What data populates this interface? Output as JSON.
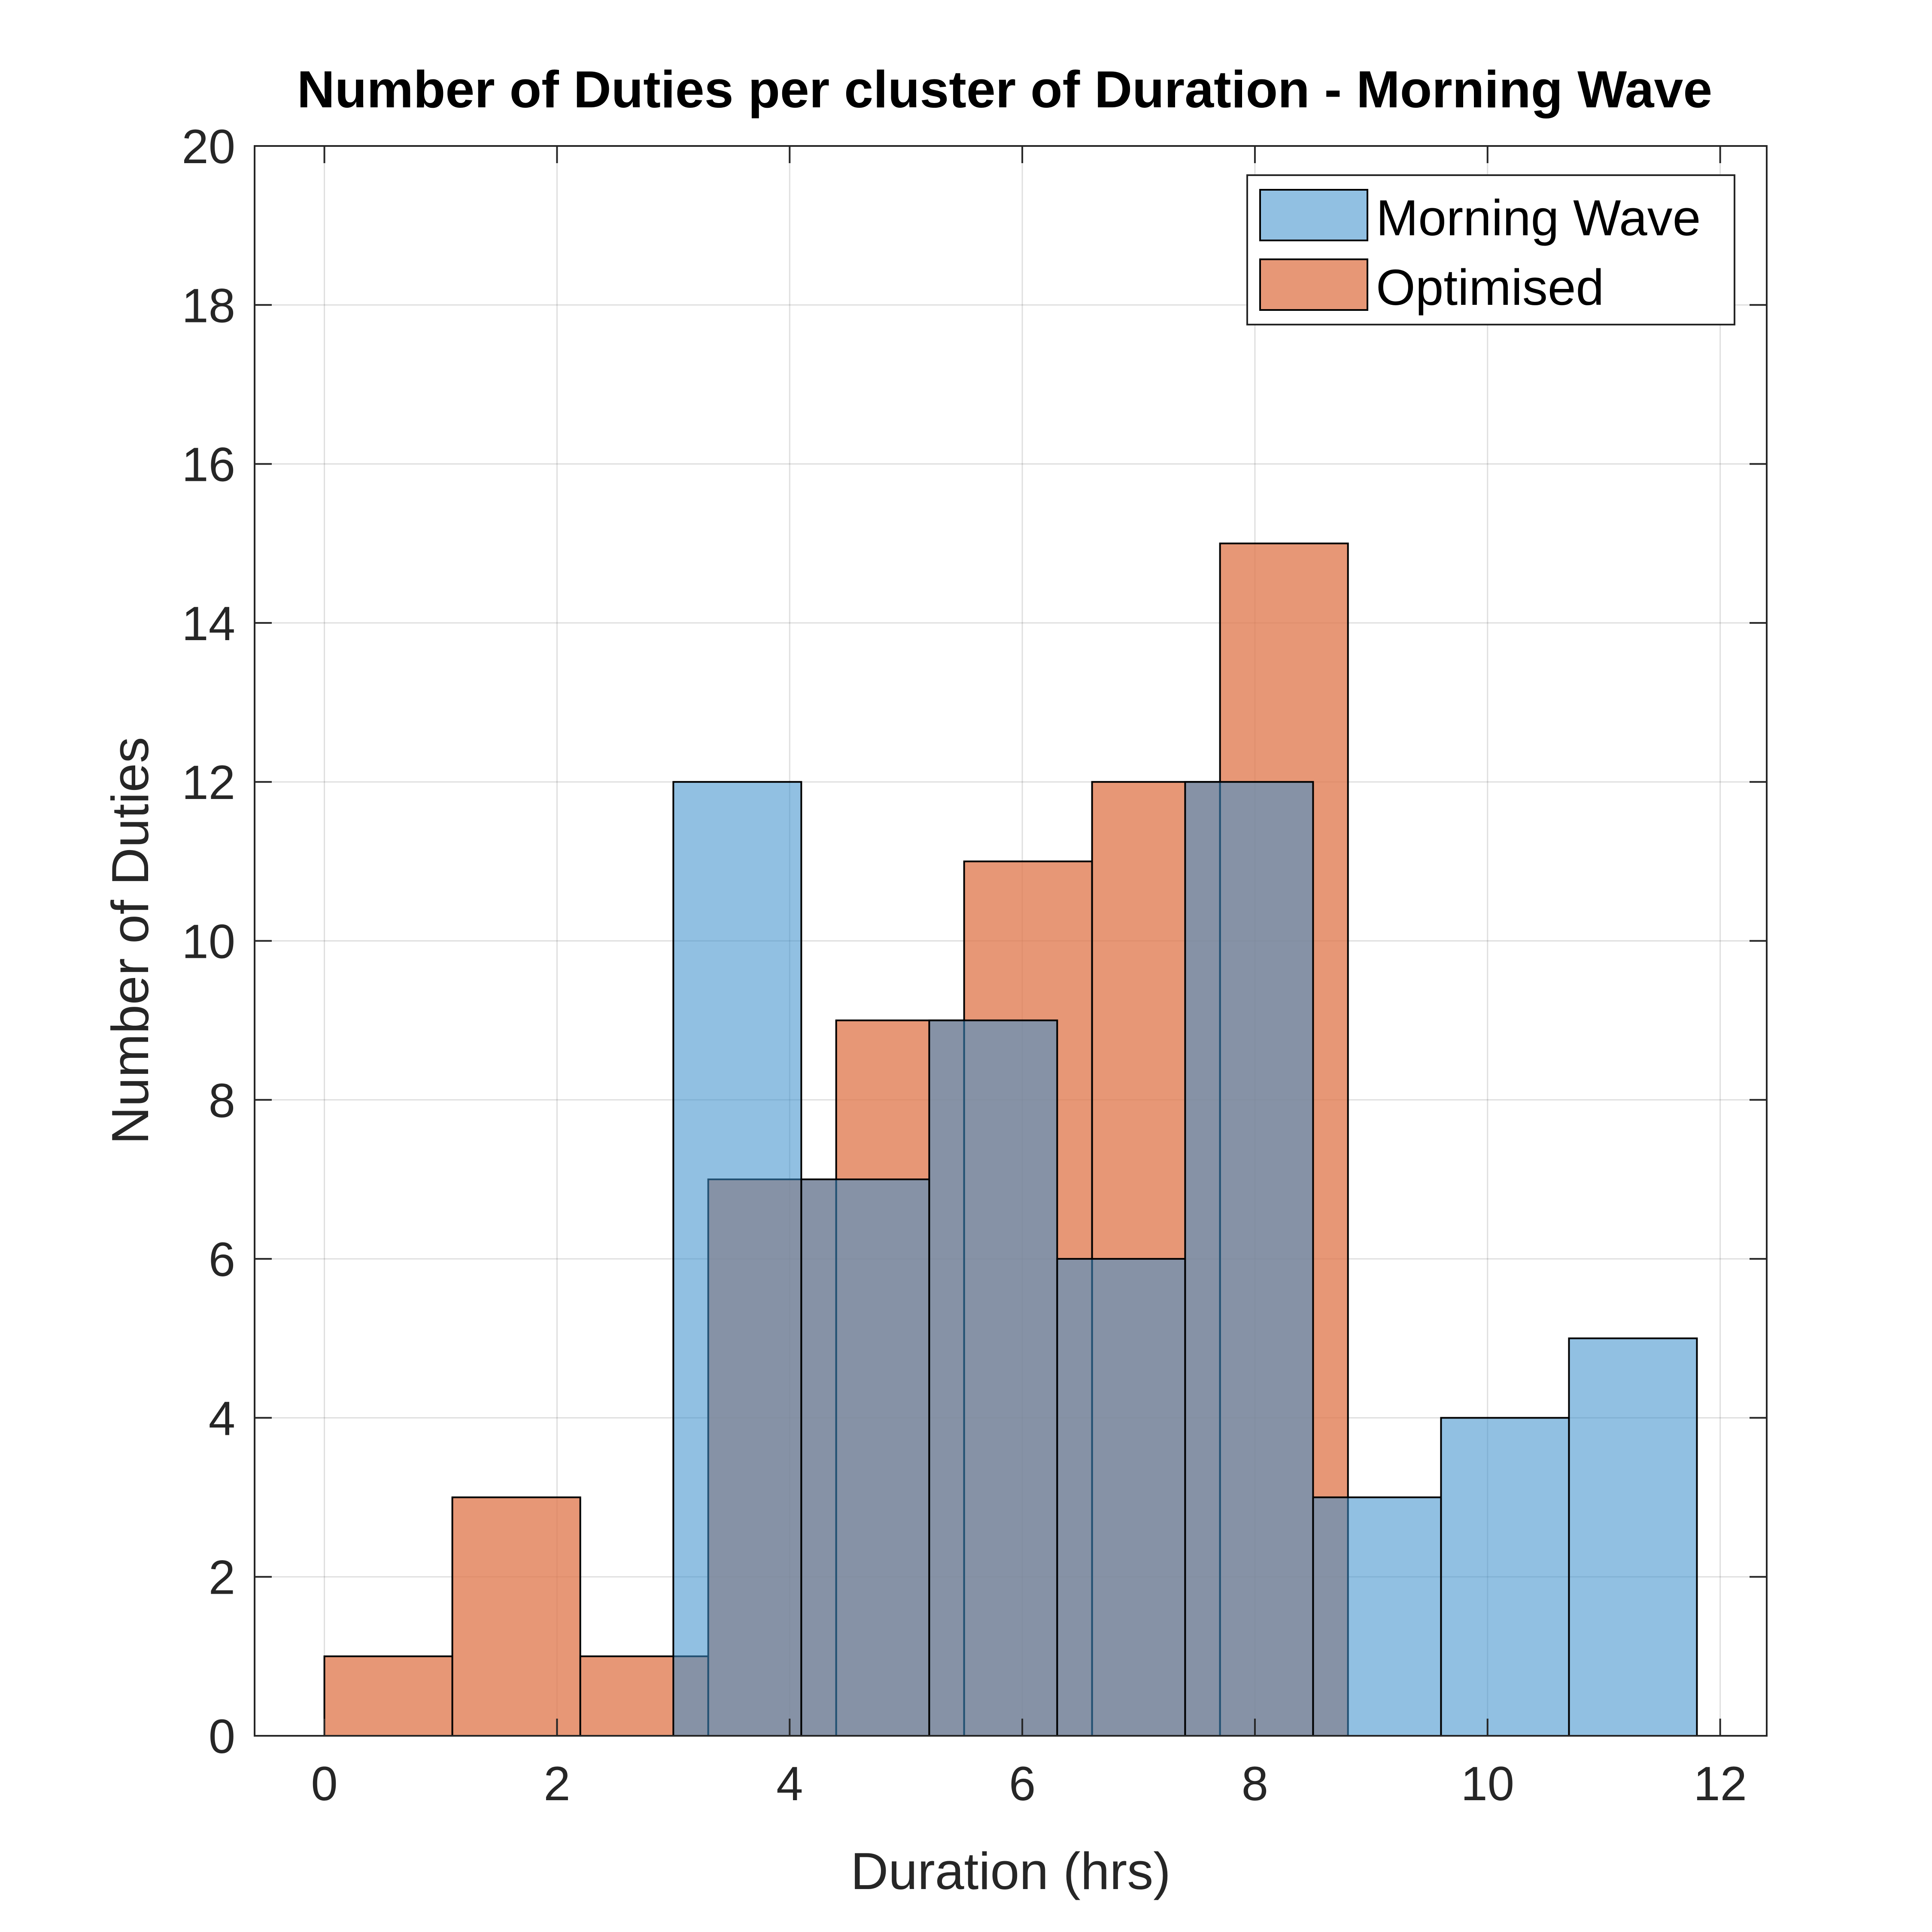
{
  "chart_data": {
    "type": "bar",
    "title": "Number of Duties per cluster of Duration - Morning Wave",
    "xlabel": "Duration (hrs)",
    "ylabel": "Number of Duties",
    "xlim": [
      -0.6,
      12.4
    ],
    "ylim": [
      0,
      20
    ],
    "xticks": [
      0,
      2,
      4,
      6,
      8,
      10,
      12
    ],
    "yticks": [
      0,
      2,
      4,
      6,
      8,
      10,
      12,
      14,
      16,
      18,
      20
    ],
    "grid": true,
    "legend_position": "top-right",
    "series": [
      {
        "name": "Optimised",
        "color": "#E07A50",
        "bins": [
          {
            "x0": 0.0,
            "x1": 1.1,
            "count": 1
          },
          {
            "x0": 1.1,
            "x1": 2.2,
            "count": 3
          },
          {
            "x0": 2.2,
            "x1": 3.3,
            "count": 1
          },
          {
            "x0": 3.3,
            "x1": 4.4,
            "count": 7
          },
          {
            "x0": 4.4,
            "x1": 5.5,
            "count": 9
          },
          {
            "x0": 5.5,
            "x1": 6.6,
            "count": 11
          },
          {
            "x0": 6.6,
            "x1": 7.7,
            "count": 12
          },
          {
            "x0": 7.7,
            "x1": 8.8,
            "count": 15
          }
        ]
      },
      {
        "name": "Morning Wave",
        "color": "#3B8FCC",
        "bins": [
          {
            "x0": 3.0,
            "x1": 4.1,
            "count": 12
          },
          {
            "x0": 4.1,
            "x1": 5.2,
            "count": 7
          },
          {
            "x0": 5.2,
            "x1": 6.3,
            "count": 9
          },
          {
            "x0": 6.3,
            "x1": 7.4,
            "count": 6
          },
          {
            "x0": 7.4,
            "x1": 8.5,
            "count": 12
          },
          {
            "x0": 8.5,
            "x1": 9.6,
            "count": 3
          },
          {
            "x0": 9.6,
            "x1": 10.7,
            "count": 4
          },
          {
            "x0": 10.7,
            "x1": 11.8,
            "count": 5
          }
        ]
      }
    ],
    "legend": [
      "Morning Wave",
      "Optimised"
    ]
  }
}
